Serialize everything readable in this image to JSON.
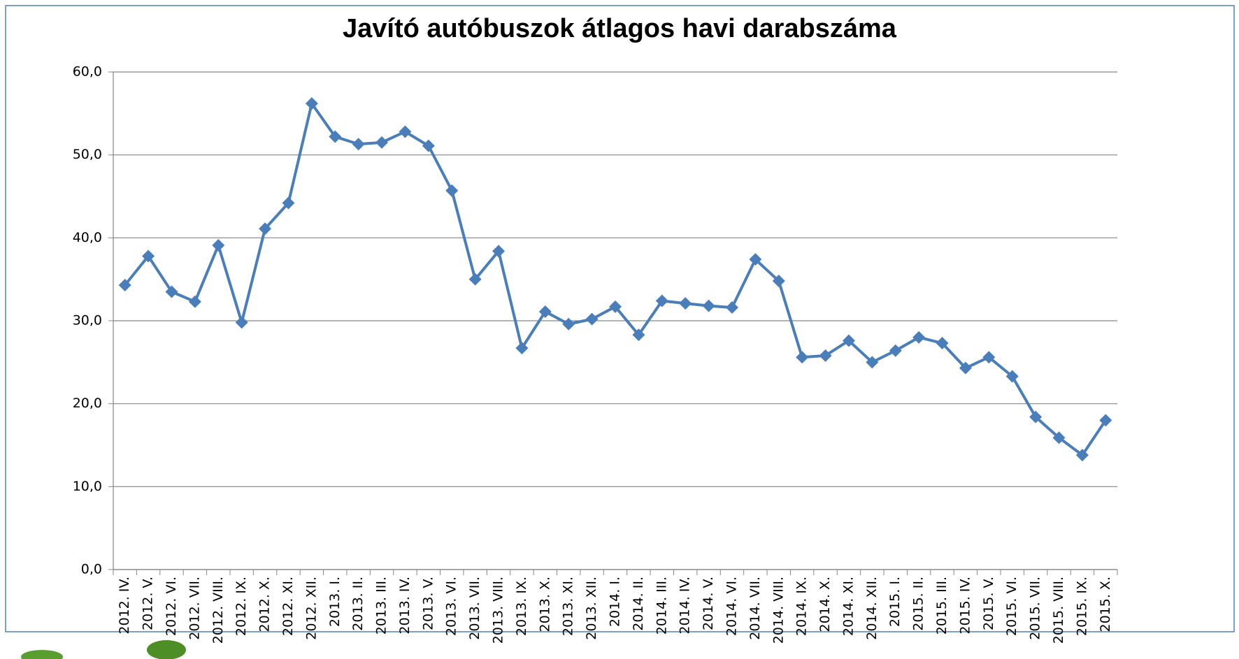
{
  "chart_data": {
    "type": "line",
    "title": "Javító autóbuszok átlagos havi darabszáma",
    "categories": [
      "2012. IV.",
      "2012. V.",
      "2012. VI.",
      "2012. VII.",
      "2012. VIII.",
      "2012. IX.",
      "2012. X.",
      "2012. XI.",
      "2012. XII.",
      "2013. I.",
      "2013. II.",
      "2013. III.",
      "2013. IV.",
      "2013. V.",
      "2013. VI.",
      "2013. VII.",
      "2013. VIII.",
      "2013. IX.",
      "2013. X.",
      "2013. XI.",
      "2013. XII.",
      "2014. I.",
      "2014. II.",
      "2014. III.",
      "2014. IV.",
      "2014. V.",
      "2014. VI.",
      "2014. VII.",
      "2014. VIII.",
      "2014. IX.",
      "2014. X.",
      "2014. XI.",
      "2014. XII.",
      "2015. I.",
      "2015. II.",
      "2015. III.",
      "2015. IV.",
      "2015. V.",
      "2015. VI.",
      "2015. VII.",
      "2015. VIII.",
      "2015. IX.",
      "2015. X."
    ],
    "values": [
      34.3,
      37.8,
      33.5,
      32.3,
      39.1,
      29.8,
      41.1,
      44.2,
      56.2,
      52.2,
      51.3,
      51.5,
      52.8,
      51.1,
      45.7,
      35.0,
      38.4,
      26.7,
      31.1,
      29.6,
      30.2,
      31.7,
      28.3,
      32.4,
      32.1,
      31.8,
      31.6,
      37.4,
      34.8,
      25.6,
      25.8,
      27.6,
      25.0,
      26.4,
      28.0,
      27.3,
      24.3,
      25.6,
      23.3,
      18.4,
      15.9,
      13.8,
      18.0
    ],
    "color": "#4a7ebb",
    "ylim": [
      0,
      60
    ],
    "yticks": [
      {
        "value": 0,
        "label": "0,0"
      },
      {
        "value": 10,
        "label": "10,0"
      },
      {
        "value": 20,
        "label": "20,0"
      },
      {
        "value": 30,
        "label": "30,0"
      },
      {
        "value": 40,
        "label": "40,0"
      },
      {
        "value": 50,
        "label": "50,0"
      },
      {
        "value": 60,
        "label": "60,0"
      }
    ],
    "grid": true
  }
}
